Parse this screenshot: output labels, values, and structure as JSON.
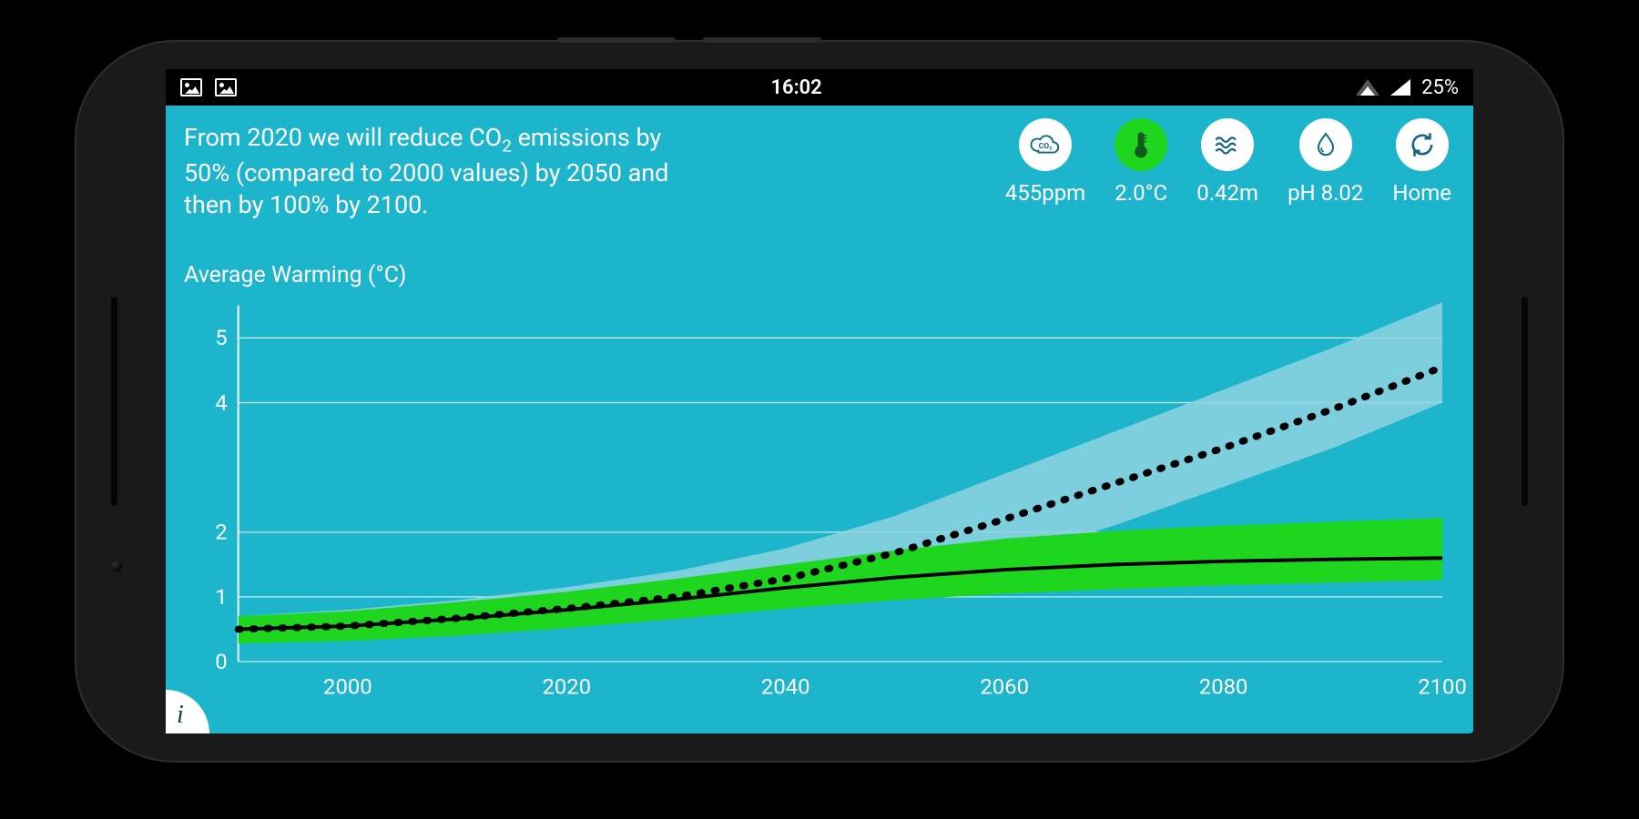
{
  "statusbar": {
    "time": "16:02",
    "battery": "25%"
  },
  "description_html": "From 2020 we will reduce CO<sub>2</sub> emissions by 50% (compared to 2000 values) by 2050 and then by 100% by 2100.",
  "chart_title": "Average Warming (°C)",
  "metrics": [
    {
      "key": "co2",
      "label": "455ppm",
      "icon": "co2-cloud-icon",
      "active": false
    },
    {
      "key": "temp",
      "label": "2.0°C",
      "icon": "thermometer-icon",
      "active": true
    },
    {
      "key": "sea",
      "label": "0.42m",
      "icon": "waves-icon",
      "active": false
    },
    {
      "key": "ph",
      "label": "pH 8.02",
      "icon": "droplet-icon",
      "active": false
    },
    {
      "key": "home",
      "label": "Home",
      "icon": "refresh-icon",
      "active": false
    }
  ],
  "info_button": "i",
  "chart": {
    "type": "line",
    "background_color": "#1cb5cc",
    "grid_color": "#d7f0f4",
    "axis_color": "#ffffff",
    "label_color": "#ffffff",
    "label_fontsize": 24,
    "x": {
      "min": 1990,
      "max": 2100,
      "ticks": [
        2000,
        2020,
        2040,
        2060,
        2080,
        2100
      ]
    },
    "y": {
      "min": 0,
      "max": 5.5,
      "ticks": [
        0,
        1,
        2,
        4,
        5
      ]
    },
    "baseline_band": {
      "fill": "#8fd4e0",
      "opacity": 0.85,
      "upper": [
        [
          1990,
          0.7
        ],
        [
          2000,
          0.8
        ],
        [
          2010,
          0.95
        ],
        [
          2020,
          1.15
        ],
        [
          2030,
          1.4
        ],
        [
          2040,
          1.75
        ],
        [
          2050,
          2.25
        ],
        [
          2060,
          2.9
        ],
        [
          2070,
          3.55
        ],
        [
          2080,
          4.2
        ],
        [
          2090,
          4.85
        ],
        [
          2100,
          5.55
        ]
      ],
      "lower": [
        [
          1990,
          0.3
        ],
        [
          2000,
          0.35
        ],
        [
          2010,
          0.45
        ],
        [
          2020,
          0.55
        ],
        [
          2030,
          0.7
        ],
        [
          2040,
          0.9
        ],
        [
          2050,
          1.2
        ],
        [
          2060,
          1.6
        ],
        [
          2070,
          2.1
        ],
        [
          2080,
          2.7
        ],
        [
          2090,
          3.3
        ],
        [
          2100,
          4.0
        ]
      ]
    },
    "baseline_line": {
      "stroke": "#000000",
      "stroke_width": 8,
      "dash": "2 14",
      "points": [
        [
          1990,
          0.5
        ],
        [
          2000,
          0.55
        ],
        [
          2010,
          0.67
        ],
        [
          2020,
          0.82
        ],
        [
          2030,
          1.0
        ],
        [
          2040,
          1.28
        ],
        [
          2050,
          1.68
        ],
        [
          2060,
          2.2
        ],
        [
          2070,
          2.75
        ],
        [
          2080,
          3.3
        ],
        [
          2090,
          3.9
        ],
        [
          2100,
          4.55
        ]
      ]
    },
    "scenario_band": {
      "fill": "#1fd61f",
      "opacity": 1,
      "upper": [
        [
          1990,
          0.7
        ],
        [
          2000,
          0.78
        ],
        [
          2010,
          0.92
        ],
        [
          2020,
          1.08
        ],
        [
          2030,
          1.28
        ],
        [
          2040,
          1.5
        ],
        [
          2050,
          1.72
        ],
        [
          2060,
          1.9
        ],
        [
          2070,
          2.02
        ],
        [
          2080,
          2.1
        ],
        [
          2090,
          2.16
        ],
        [
          2100,
          2.22
        ]
      ],
      "lower": [
        [
          1990,
          0.28
        ],
        [
          2000,
          0.32
        ],
        [
          2010,
          0.4
        ],
        [
          2020,
          0.52
        ],
        [
          2030,
          0.66
        ],
        [
          2040,
          0.82
        ],
        [
          2050,
          0.95
        ],
        [
          2060,
          1.05
        ],
        [
          2070,
          1.12
        ],
        [
          2080,
          1.18
        ],
        [
          2090,
          1.22
        ],
        [
          2100,
          1.26
        ]
      ]
    },
    "scenario_line": {
      "stroke": "#000000",
      "stroke_width": 4,
      "points": [
        [
          1990,
          0.5
        ],
        [
          2000,
          0.55
        ],
        [
          2010,
          0.66
        ],
        [
          2020,
          0.8
        ],
        [
          2030,
          0.96
        ],
        [
          2040,
          1.14
        ],
        [
          2050,
          1.3
        ],
        [
          2060,
          1.42
        ],
        [
          2070,
          1.5
        ],
        [
          2080,
          1.55
        ],
        [
          2090,
          1.58
        ],
        [
          2100,
          1.6
        ]
      ]
    }
  }
}
